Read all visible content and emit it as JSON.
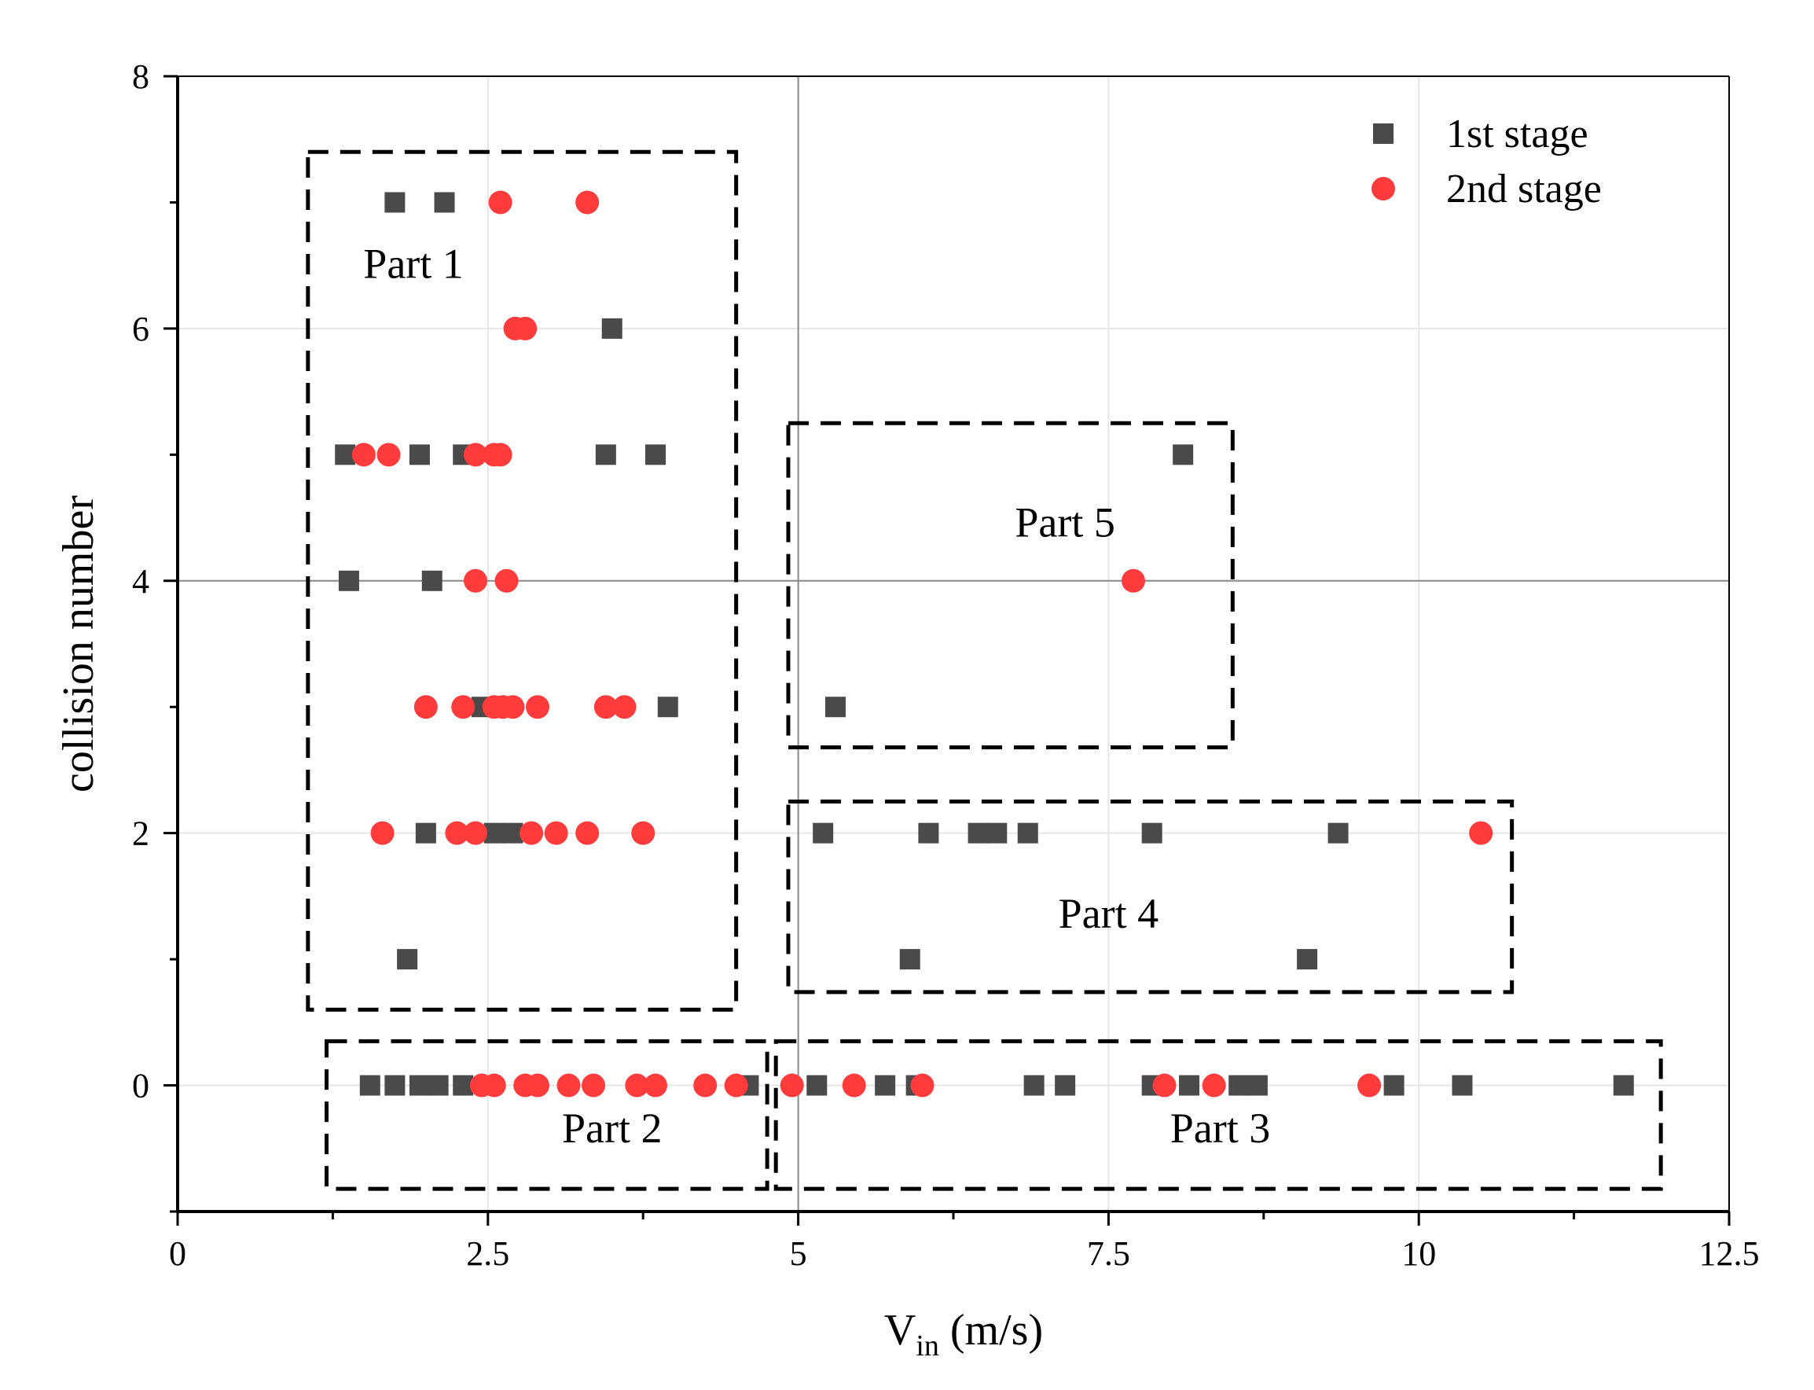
{
  "chart_data": {
    "type": "scatter",
    "title": "",
    "xlabel": {
      "main": "V",
      "subscript": "in",
      "units": " (m/s)"
    },
    "ylabel": "collision number",
    "xlim": [
      0,
      12.5
    ],
    "ylim": [
      -1,
      8
    ],
    "xticks": [
      0,
      2.5,
      5,
      7.5,
      10,
      12.5
    ],
    "xtick_labels": [
      "0",
      "2.5",
      "5",
      "7.5",
      "10",
      "12.5"
    ],
    "yticks": [
      0,
      2,
      4,
      6,
      8
    ],
    "ytick_labels": [
      "0",
      "2",
      "4",
      "6",
      "8"
    ],
    "grid": true,
    "reference_lines": {
      "x": 5,
      "y": 4
    },
    "legend_position": "top-right",
    "colors": {
      "first": "#4a4a4a",
      "second": "#ff3b3b",
      "grid": "#e6e6e6",
      "ref": "#8a8a8a"
    },
    "series": [
      {
        "name": "1st stage",
        "marker": "square",
        "points": [
          [
            1.75,
            7
          ],
          [
            2.15,
            7
          ],
          [
            3.5,
            6
          ],
          [
            1.35,
            5
          ],
          [
            1.95,
            5
          ],
          [
            2.3,
            5
          ],
          [
            3.45,
            5
          ],
          [
            3.85,
            5
          ],
          [
            8.1,
            5
          ],
          [
            1.38,
            4
          ],
          [
            2.05,
            4
          ],
          [
            2.45,
            3
          ],
          [
            3.95,
            3
          ],
          [
            5.3,
            3
          ],
          [
            2.0,
            2
          ],
          [
            2.55,
            2
          ],
          [
            2.7,
            2
          ],
          [
            5.2,
            2
          ],
          [
            6.05,
            2
          ],
          [
            6.45,
            2
          ],
          [
            6.6,
            2
          ],
          [
            6.85,
            2
          ],
          [
            7.85,
            2
          ],
          [
            9.35,
            2
          ],
          [
            1.85,
            1
          ],
          [
            5.9,
            1
          ],
          [
            9.1,
            1
          ],
          [
            1.55,
            0
          ],
          [
            1.75,
            0
          ],
          [
            1.95,
            0
          ],
          [
            2.1,
            0
          ],
          [
            2.3,
            0
          ],
          [
            4.6,
            0
          ],
          [
            5.15,
            0
          ],
          [
            5.7,
            0
          ],
          [
            5.95,
            0
          ],
          [
            6.9,
            0
          ],
          [
            7.15,
            0
          ],
          [
            7.85,
            0
          ],
          [
            8.15,
            0
          ],
          [
            8.55,
            0
          ],
          [
            8.7,
            0
          ],
          [
            9.8,
            0
          ],
          [
            10.35,
            0
          ],
          [
            11.65,
            0
          ]
        ]
      },
      {
        "name": "2nd stage",
        "marker": "circle",
        "points": [
          [
            2.6,
            7
          ],
          [
            3.3,
            7
          ],
          [
            2.72,
            6
          ],
          [
            2.8,
            6
          ],
          [
            1.5,
            5
          ],
          [
            1.7,
            5
          ],
          [
            2.4,
            5
          ],
          [
            2.55,
            5
          ],
          [
            2.6,
            5
          ],
          [
            2.4,
            4
          ],
          [
            2.65,
            4
          ],
          [
            7.7,
            4
          ],
          [
            2.0,
            3
          ],
          [
            2.3,
            3
          ],
          [
            2.55,
            3
          ],
          [
            2.62,
            3
          ],
          [
            2.7,
            3
          ],
          [
            2.9,
            3
          ],
          [
            3.45,
            3
          ],
          [
            3.6,
            3
          ],
          [
            1.65,
            2
          ],
          [
            2.25,
            2
          ],
          [
            2.4,
            2
          ],
          [
            2.85,
            2
          ],
          [
            3.05,
            2
          ],
          [
            3.3,
            2
          ],
          [
            3.75,
            2
          ],
          [
            10.5,
            2
          ],
          [
            2.45,
            0
          ],
          [
            2.55,
            0
          ],
          [
            2.8,
            0
          ],
          [
            2.9,
            0
          ],
          [
            3.15,
            0
          ],
          [
            3.35,
            0
          ],
          [
            3.7,
            0
          ],
          [
            3.85,
            0
          ],
          [
            4.25,
            0
          ],
          [
            4.5,
            0
          ],
          [
            4.95,
            0
          ],
          [
            5.45,
            0
          ],
          [
            6.0,
            0
          ],
          [
            7.95,
            0
          ],
          [
            8.35,
            0
          ],
          [
            9.6,
            0
          ]
        ]
      }
    ],
    "regions": [
      {
        "label": "Part 1",
        "x0": 1.05,
        "x1": 4.5,
        "y0": 0.6,
        "y1": 7.4,
        "label_x": 1.9,
        "label_y": 6.4
      },
      {
        "label": "Part 2",
        "x0": 1.2,
        "x1": 4.75,
        "y0": -0.82,
        "y1": 0.35,
        "label_x": 3.5,
        "label_y": -0.45
      },
      {
        "label": "Part 3",
        "x0": 4.82,
        "x1": 11.95,
        "y0": -0.82,
        "y1": 0.35,
        "label_x": 8.4,
        "label_y": -0.45
      },
      {
        "label": "Part 4",
        "x0": 4.92,
        "x1": 10.75,
        "y0": 0.74,
        "y1": 2.25,
        "label_x": 7.5,
        "label_y": 1.25
      },
      {
        "label": "Part 5",
        "x0": 4.92,
        "x1": 8.5,
        "y0": 2.68,
        "y1": 5.25,
        "label_x": 7.15,
        "label_y": 4.35
      }
    ]
  }
}
